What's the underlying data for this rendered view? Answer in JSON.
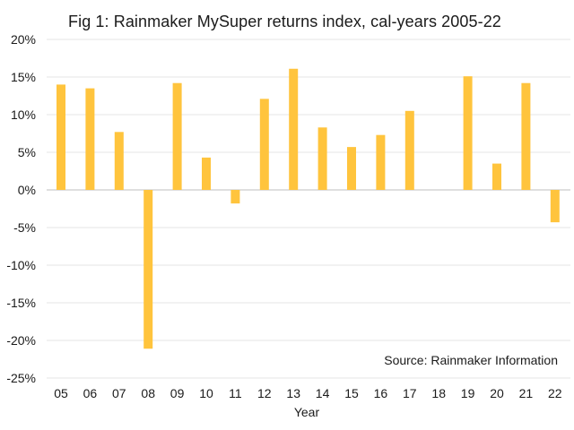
{
  "chart_data": {
    "type": "bar",
    "title": "Fig 1:   Rainmaker MySuper returns index, cal-years 2005-22",
    "xlabel": "Year",
    "ylabel": "",
    "categories": [
      "05",
      "06",
      "07",
      "08",
      "09",
      "10",
      "11",
      "12",
      "13",
      "14",
      "15",
      "16",
      "17",
      "18",
      "19",
      "20",
      "21",
      "22"
    ],
    "values": [
      14.0,
      13.5,
      7.7,
      -21.1,
      14.2,
      4.3,
      -1.8,
      12.1,
      16.1,
      8.3,
      5.7,
      7.3,
      10.5,
      null,
      15.1,
      3.5,
      14.2,
      -4.3
    ],
    "ylim": [
      -25,
      20
    ],
    "yticks": [
      20,
      15,
      10,
      5,
      0,
      -5,
      -10,
      -15,
      -20,
      -25
    ],
    "ytick_labels": [
      "20%",
      "15%",
      "10%",
      "5%",
      "0%",
      "-5%",
      "-10%",
      "-15%",
      "-20%",
      "-25%"
    ],
    "grid": true,
    "legend": null,
    "annotation": "Source: Rainmaker Information",
    "bar_color": "#FFC43D",
    "grid_color": "#E6E6E6"
  }
}
